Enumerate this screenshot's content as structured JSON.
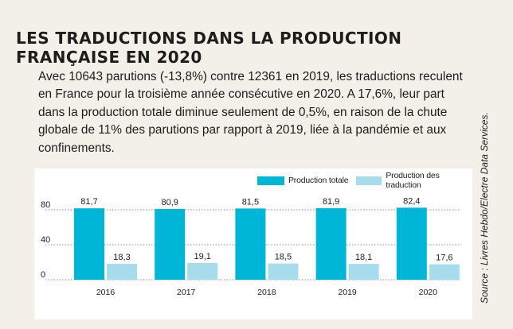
{
  "title": "LES TRADUCTIONS DANS LA PRODUCTION FRANÇAISE EN 2020",
  "intro": "Avec 10643 parutions (-13,8%) contre 12361 en 2019, les traductions reculent en France pour la troisième année consécutive en 2020. A 17,6%, leur part dans la production totale diminue seulement de 0,5%, en raison de la chute globale de 11% des parutions par rapport à 2019, liée à la pandémie et aux confinements.",
  "source": "Source : Livres Hebdo/Electre Data Services.",
  "colors": {
    "production_totale": "#00b6d7",
    "production_traduction": "#a6dcec",
    "background": "#f3efe9",
    "panel": "#ffffff"
  },
  "chart_data": {
    "type": "bar",
    "categories": [
      "2016",
      "2017",
      "2018",
      "2019",
      "2020"
    ],
    "series": [
      {
        "name": "Production totale",
        "values": [
          81.7,
          80.9,
          81.5,
          81.9,
          82.4
        ],
        "labels": [
          "81,7",
          "80,9",
          "81,5",
          "81,9",
          "82,4"
        ]
      },
      {
        "name": "Production des traduction",
        "values": [
          18.3,
          19.1,
          18.5,
          18.1,
          17.6
        ],
        "labels": [
          "18,3",
          "19,1",
          "18,5",
          "18,1",
          "17,6"
        ]
      }
    ],
    "yticks": [
      "0",
      "40",
      "80"
    ],
    "ylim": [
      0,
      100
    ],
    "grid": true,
    "legend_position": "top-right"
  }
}
